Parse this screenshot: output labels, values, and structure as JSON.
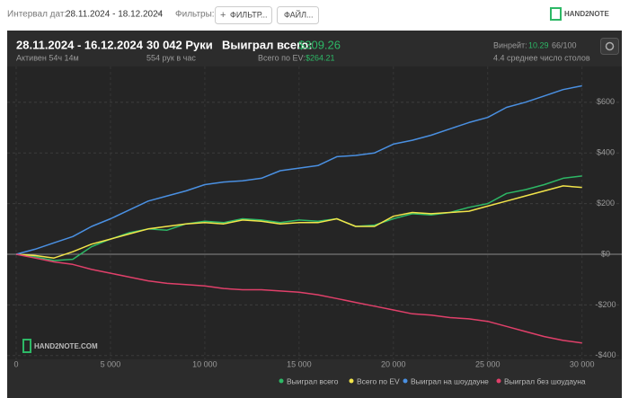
{
  "toolbar": {
    "date_range_label": "Интервал дат:",
    "date_range": "28.11.2024 - 18.12.2024",
    "filters_label": "Фильтры:",
    "filter_button": "ФИЛЬТР...",
    "file_button": "ФАЙЛ...",
    "logo": "HAND2NOTE"
  },
  "summary": {
    "period": "28.11.2024 - 16.12.2024",
    "active": "Активен 54ч 14м",
    "hands": "30 042 Руки",
    "hands_per_hour": "554 рук в час",
    "won_label": "Выиграл всего:",
    "won_value": "$309.26",
    "ev_label": "Всего по EV:",
    "ev_value": "$264.21",
    "winrate_label": "Винрейт:",
    "winrate_value": "10.29",
    "winrate_unit": "66/100",
    "tables": "4.4 среднее число столов"
  },
  "chart_data": {
    "type": "line",
    "watermark": "HAND2NOTE.COM",
    "x": [
      0,
      1000,
      2000,
      3000,
      4000,
      5000,
      6000,
      7000,
      8000,
      9000,
      10000,
      11000,
      12000,
      13000,
      14000,
      15000,
      16000,
      17000,
      18000,
      19000,
      20000,
      21000,
      22000,
      23000,
      24000,
      25000,
      26000,
      27000,
      28000,
      29000,
      30000
    ],
    "series": [
      {
        "name": "Выиграл всего",
        "color": "#2db866",
        "values": [
          0,
          -10,
          -25,
          -20,
          30,
          60,
          85,
          100,
          95,
          120,
          130,
          125,
          140,
          135,
          125,
          135,
          130,
          140,
          110,
          115,
          140,
          160,
          155,
          165,
          185,
          200,
          240,
          255,
          275,
          300,
          309
        ]
      },
      {
        "name": "Всего по EV",
        "color": "#f2e44a",
        "values": [
          0,
          -5,
          -15,
          10,
          40,
          60,
          80,
          100,
          110,
          120,
          125,
          120,
          135,
          130,
          120,
          125,
          125,
          140,
          110,
          110,
          150,
          165,
          160,
          165,
          170,
          190,
          210,
          230,
          250,
          270,
          264
        ]
      },
      {
        "name": "Выиграл на шоудауне",
        "color": "#4a90e2",
        "values": [
          0,
          20,
          45,
          70,
          110,
          140,
          175,
          210,
          230,
          250,
          275,
          285,
          290,
          300,
          330,
          340,
          350,
          385,
          390,
          400,
          435,
          450,
          470,
          495,
          520,
          540,
          580,
          600,
          625,
          650,
          665
        ]
      },
      {
        "name": "Выиграл без шоудауна",
        "color": "#e0406a",
        "values": [
          0,
          -15,
          -30,
          -40,
          -60,
          -75,
          -90,
          -105,
          -115,
          -120,
          -125,
          -135,
          -140,
          -140,
          -145,
          -150,
          -160,
          -175,
          -190,
          -205,
          -220,
          -235,
          -240,
          -250,
          -255,
          -265,
          -285,
          -305,
          -325,
          -340,
          -350
        ]
      }
    ],
    "xlim": [
      0,
      30300
    ],
    "ylim": [
      -415,
      720
    ],
    "xticks": [
      0,
      {
        "value": 5000,
        "label": "5 000"
      },
      {
        "value": 10000,
        "label": "10 000"
      },
      {
        "value": 15000,
        "label": "15 000"
      },
      {
        "value": 20000,
        "label": "20 000"
      },
      {
        "value": 25000,
        "label": "25 000"
      },
      {
        "value": 30000,
        "label": "30 000"
      }
    ],
    "yticks": [
      {
        "value": -400,
        "label": "-$400"
      },
      {
        "value": -200,
        "label": "-$200"
      },
      {
        "value": 0,
        "label": "$0"
      },
      {
        "value": 200,
        "label": "$200"
      },
      {
        "value": 400,
        "label": "$400"
      },
      {
        "value": 600,
        "label": "$600"
      }
    ],
    "grid": true
  }
}
